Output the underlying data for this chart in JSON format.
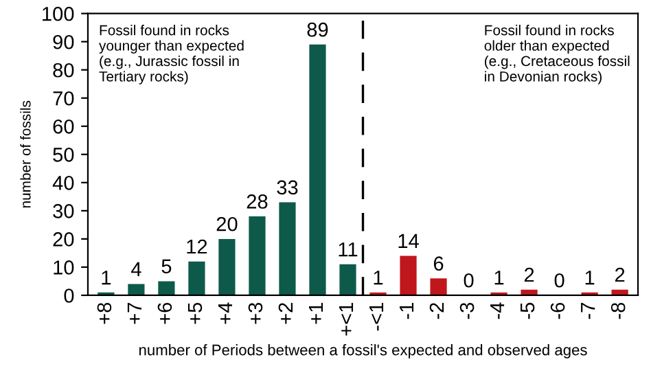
{
  "chart_data": {
    "type": "bar",
    "categories": [
      "+8",
      "+7",
      "+6",
      "+5",
      "+4",
      "+3",
      "+2",
      "+1",
      "+<1",
      "-<1",
      "-1",
      "-2",
      "-3",
      "-4",
      "-5",
      "-6",
      "-7",
      "-8"
    ],
    "values": [
      1,
      4,
      5,
      12,
      20,
      28,
      33,
      89,
      11,
      1,
      14,
      6,
      0,
      1,
      2,
      0,
      1,
      2
    ],
    "colors": [
      "#0e5a4a",
      "#0e5a4a",
      "#0e5a4a",
      "#0e5a4a",
      "#0e5a4a",
      "#0e5a4a",
      "#0e5a4a",
      "#0e5a4a",
      "#0e5a4a",
      "#c0171c",
      "#c0171c",
      "#c0171c",
      "#c0171c",
      "#c0171c",
      "#c0171c",
      "#c0171c",
      "#c0171c",
      "#c0171c"
    ],
    "data_labels": true,
    "xlabel": "number of Periods between a fossil's expected and observed ages",
    "ylabel": "number of fossils",
    "ylim": [
      0,
      100
    ],
    "yticks": [
      0,
      10,
      20,
      30,
      40,
      50,
      60,
      70,
      80,
      90,
      100
    ],
    "grid": false,
    "legend": false,
    "annotations": [
      "Fossil found in rocks\nyounger than expected\n(e.g., Jurassic fossil in\nTertiary rocks)",
      "Fossil found in rocks\nolder than expected\n(e.g., Cretaceous fossil\nin Devonian rocks)"
    ]
  }
}
